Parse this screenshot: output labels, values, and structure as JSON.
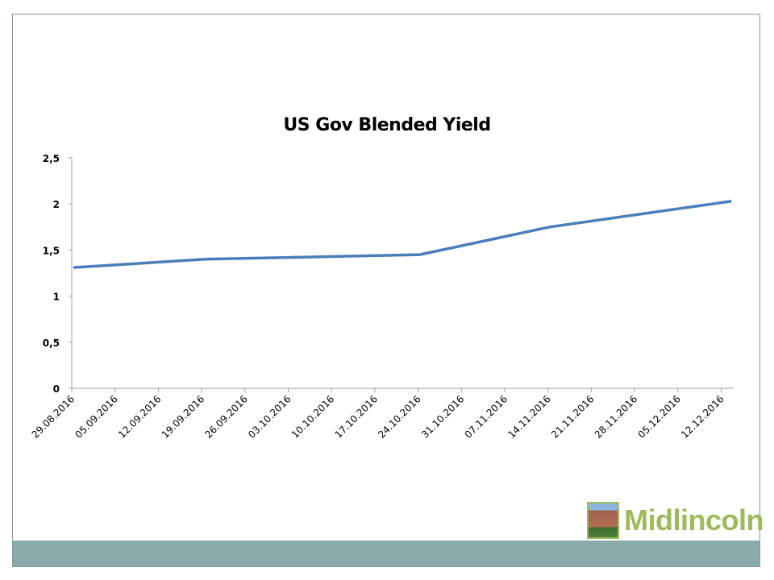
{
  "chart_data": {
    "type": "line",
    "title": "US Gov Blended Yield",
    "xlabel": "",
    "ylabel": "",
    "ylim": [
      0,
      2.5
    ],
    "y_ticks": [
      "0",
      "0,5",
      "1",
      "1,5",
      "2",
      "2,5"
    ],
    "y_tick_values": [
      0,
      0.5,
      1,
      1.5,
      2,
      2.5
    ],
    "categories": [
      "29.08.2016",
      "05.09.2016",
      "12.09.2016",
      "19.09.2016",
      "26.09.2016",
      "03.10.2016",
      "10.10.2016",
      "17.10.2016",
      "24.10.2016",
      "31.10.2016",
      "07.11.2016",
      "14.11.2016",
      "21.11.2016",
      "28.11.2016",
      "05.12.2016",
      "12.12.2016"
    ],
    "grid": false,
    "legend": "none",
    "series": [
      {
        "name": "US Gov Blended Yield",
        "color": "#4a7ebb",
        "points": [
          {
            "date": "29.08.2016",
            "week": 0,
            "value": 1.31
          },
          {
            "date": "19.09.2016",
            "week": 3,
            "value": 1.4
          },
          {
            "date": "24.10.2016",
            "week": 8,
            "value": 1.45
          },
          {
            "date": "14.11.2016",
            "week": 11,
            "value": 1.75
          },
          {
            "date": "14.12.2016",
            "week": 15.2,
            "value": 2.03
          }
        ]
      }
    ]
  },
  "logo": {
    "text": "Midlincoln"
  },
  "colors": {
    "band": "#8aabaa",
    "logo": "#9bbb59",
    "line": "#4a7ebb"
  }
}
